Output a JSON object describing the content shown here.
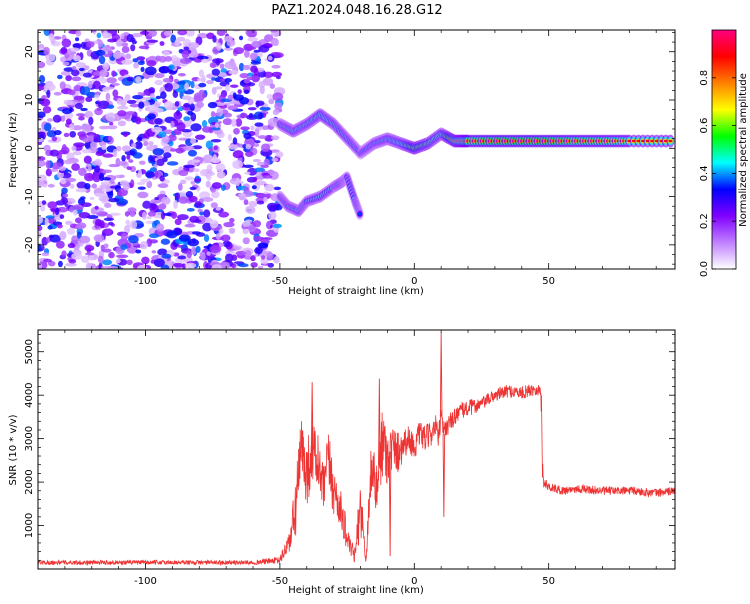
{
  "title": "PAZ1.2024.048.16.28.G12",
  "chart_data": [
    {
      "type": "heatmap",
      "xlabel": "Height of straight line (km)",
      "ylabel": "Frequency (Hz)",
      "xlim": [
        -140,
        97
      ],
      "ylim": [
        -25,
        24.5
      ],
      "xticks": [
        -100,
        -50,
        0,
        50
      ],
      "xtick_labels": [
        "-100",
        "-50",
        "0",
        "50"
      ],
      "yticks": [
        -20,
        -10,
        0,
        10,
        20
      ],
      "ytick_labels": [
        "-20",
        "-10",
        "0",
        "10",
        "20"
      ],
      "colorbar": {
        "label": "Normalized spectral amplitude",
        "range": [
          0,
          1
        ],
        "ticks": [
          0.0,
          0.2,
          0.4,
          0.6,
          0.8
        ],
        "tick_labels": [
          "0.0",
          "0.2",
          "0.4",
          "0.6",
          "0.8"
        ],
        "colormap": [
          "#ffffff",
          "#c080ff",
          "#8000ff",
          "#0000ff",
          "#00ffff",
          "#00ff00",
          "#ffff00",
          "#ff8000",
          "#ff0000",
          "#ff0080"
        ]
      },
      "ridge": {
        "x": [
          -50,
          -45,
          -40,
          -35,
          -30,
          -25,
          -20,
          -15,
          -10,
          -5,
          0,
          5,
          10,
          15,
          20,
          30,
          40,
          50,
          60,
          70,
          80,
          97
        ],
        "y": [
          5,
          3.5,
          5,
          7,
          5,
          2,
          -1,
          1,
          2,
          1,
          0,
          1,
          3,
          1.5,
          1.5,
          1.5,
          1.5,
          1.5,
          1.5,
          1.5,
          1.5,
          1.5
        ],
        "amplitude": [
          0.45,
          0.5,
          0.5,
          0.55,
          0.5,
          0.45,
          0.4,
          0.45,
          0.5,
          0.55,
          0.7,
          0.6,
          0.55,
          0.8,
          0.95,
          1.0,
          1.0,
          1.0,
          0.95,
          0.95,
          0.9,
          0.9
        ]
      },
      "lower_branch": {
        "x": [
          -50,
          -47,
          -43,
          -40,
          -35,
          -30,
          -27,
          -25,
          -22,
          -20
        ],
        "y": [
          -10,
          -12,
          -13,
          -11,
          -10,
          -8,
          -7,
          -6,
          -11,
          -14
        ],
        "amplitude": [
          0.4,
          0.45,
          0.5,
          0.45,
          0.5,
          0.45,
          0.5,
          0.4,
          0.45,
          0.35
        ]
      },
      "noise_region": {
        "x": [
          -140,
          -50
        ],
        "y": [
          -25,
          24.5
        ],
        "amplitude_range": [
          0.05,
          0.3
        ]
      }
    },
    {
      "type": "line",
      "xlabel": "Height of straight line (km)",
      "ylabel": "SNR (10 * v/v)",
      "xlim": [
        -140,
        97
      ],
      "ylim": [
        0,
        5500
      ],
      "xticks": [
        -100,
        -50,
        0,
        50
      ],
      "xtick_labels": [
        "-100",
        "-50",
        "0",
        "50"
      ],
      "yticks": [
        1000,
        2000,
        3000,
        4000,
        5000
      ],
      "ytick_labels": [
        "1000",
        "2000",
        "3000",
        "4000",
        "5000"
      ],
      "color": "#ee3333",
      "series": [
        {
          "x": [
            -140,
            -100,
            -60,
            -50,
            -46,
            -44,
            -42,
            -40,
            -38,
            -36,
            -34,
            -32,
            -30,
            -28,
            -26,
            -24,
            -22,
            -20,
            -18,
            -16,
            -14,
            -12,
            -10,
            -8,
            -6,
            -4,
            -2,
            0,
            2,
            4,
            6,
            8,
            9,
            10,
            11,
            12,
            14,
            16,
            20,
            25,
            30,
            35,
            40,
            45,
            47,
            48,
            50,
            55,
            60,
            70,
            80,
            90,
            97
          ],
          "y": [
            150,
            150,
            150,
            200,
            700,
            1500,
            2800,
            2200,
            2700,
            2500,
            1800,
            2500,
            1800,
            1500,
            1000,
            500,
            300,
            1500,
            200,
            2400,
            1800,
            3000,
            2600,
            2800,
            2700,
            2900,
            3000,
            2800,
            3100,
            3000,
            3100,
            3300,
            3000,
            3500,
            3100,
            3300,
            3400,
            3600,
            3700,
            3800,
            4000,
            4100,
            4050,
            4150,
            4100,
            2000,
            1900,
            1800,
            1850,
            1800,
            1800,
            1750,
            1800
          ],
          "noise": [
            50,
            50,
            50,
            80,
            300,
            800,
            700,
            800,
            700,
            700,
            600,
            700,
            600,
            500,
            400,
            200,
            200,
            700,
            150,
            700,
            600,
            900,
            700,
            500,
            500,
            400,
            300,
            300,
            300,
            300,
            300,
            250,
            250,
            250,
            250,
            250,
            220,
            200,
            200,
            150,
            150,
            150,
            150,
            150,
            150,
            120,
            100,
            100,
            100,
            100,
            100,
            100,
            100
          ]
        }
      ],
      "spikes": [
        {
          "x": -38,
          "y": 4300
        },
        {
          "x": -13,
          "y": 4380
        },
        {
          "x": 10,
          "y": 5450
        },
        {
          "x": 11,
          "y": 1200
        },
        {
          "x": -9,
          "y": 300
        }
      ]
    }
  ]
}
